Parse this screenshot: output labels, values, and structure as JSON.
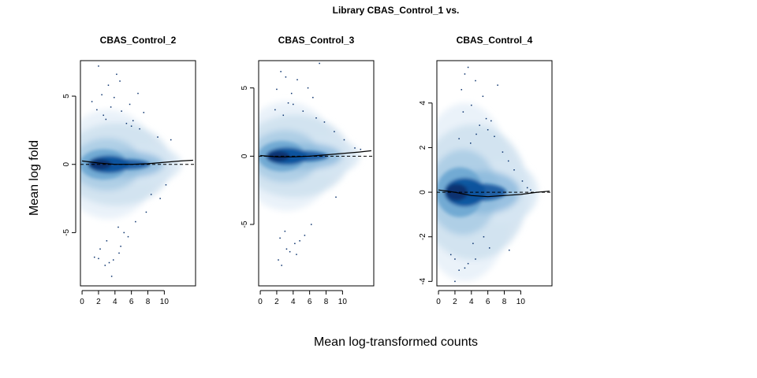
{
  "figure": {
    "title": "Library CBAS_Control_1 vs.",
    "xlabel": "Mean log-transformed counts",
    "ylabel": "Mean log fold"
  },
  "colors": {
    "density_light": "#e8f1f8",
    "density_mid": "#6ba6d1",
    "density_dark": "#08519c",
    "density_core": "#08306b",
    "points": "#08306b",
    "loess": "#000000",
    "frame": "#000000"
  },
  "chart_data": [
    {
      "type": "scatter",
      "subtype": "smoothScatter MA plot",
      "title": "CBAS_Control_2",
      "xlim": [
        -0.2,
        13.8
      ],
      "ylim": [
        -8.9,
        7.6
      ],
      "xticks": [
        0,
        2,
        4,
        6,
        8,
        10
      ],
      "yticks": [
        -5,
        0,
        5
      ],
      "reference_line": 0,
      "loess": {
        "x": [
          0,
          2,
          4,
          6,
          8,
          10,
          12,
          13.5
        ],
        "y": [
          0.25,
          0.1,
          0.0,
          0.0,
          0.05,
          0.15,
          0.25,
          0.3
        ]
      },
      "outliers": {
        "x": [
          2.0,
          4.2,
          4.6,
          3.2,
          6.8,
          2.4,
          5.8,
          3.9,
          1.2,
          7.5,
          6.2,
          5.4,
          2.9,
          4.8,
          6.0,
          7.0,
          3.5,
          2.6,
          1.8,
          4.4,
          5.1,
          3.0,
          2.2,
          1.5,
          3.8,
          4.5,
          2.8,
          3.3,
          2.0,
          4.7,
          5.6,
          6.5,
          7.8,
          9.5,
          10.2,
          10.8,
          9.2,
          8.4,
          3.6
        ],
        "y": [
          7.2,
          6.6,
          6.1,
          5.8,
          5.2,
          5.1,
          4.4,
          4.9,
          4.6,
          3.8,
          3.2,
          3.0,
          3.3,
          3.9,
          2.8,
          2.6,
          4.2,
          3.6,
          4.0,
          -4.6,
          -5.0,
          -5.6,
          -6.2,
          -6.8,
          -7.0,
          -6.5,
          -7.4,
          -7.2,
          -6.9,
          -6.0,
          -5.3,
          -4.2,
          -3.5,
          -2.5,
          -1.5,
          1.8,
          2.0,
          -2.2,
          -8.2
        ]
      }
    },
    {
      "type": "scatter",
      "subtype": "smoothScatter MA plot",
      "title": "CBAS_Control_3",
      "xlim": [
        -0.2,
        13.8
      ],
      "ylim": [
        -9.5,
        7.0
      ],
      "xticks": [
        0,
        2,
        4,
        6,
        8,
        10
      ],
      "yticks": [
        -5,
        0,
        5
      ],
      "reference_line": 0,
      "loess": {
        "x": [
          0,
          2,
          4,
          6,
          8,
          10,
          12,
          13.5
        ],
        "y": [
          0.05,
          -0.05,
          -0.05,
          0.0,
          0.1,
          0.2,
          0.3,
          0.4
        ]
      },
      "outliers": {
        "x": [
          2.5,
          7.2,
          3.1,
          4.5,
          5.8,
          2.0,
          3.8,
          6.4,
          4.0,
          5.2,
          3.4,
          6.8,
          7.8,
          2.8,
          1.8,
          9.0,
          10.2,
          11.5,
          12.2,
          3.0,
          2.4,
          4.2,
          3.6,
          4.8,
          2.2,
          5.4,
          6.2,
          3.2,
          4.4,
          2.6,
          9.2
        ],
        "y": [
          6.2,
          6.8,
          5.8,
          5.6,
          5.0,
          4.9,
          4.6,
          4.3,
          3.8,
          3.3,
          3.9,
          2.8,
          2.5,
          3.0,
          3.4,
          1.8,
          1.2,
          0.6,
          0.5,
          -5.5,
          -6.0,
          -6.4,
          -7.0,
          -6.2,
          -7.6,
          -5.8,
          -5.0,
          -6.8,
          -7.2,
          -8.0,
          -3.0
        ]
      }
    },
    {
      "type": "scatter",
      "subtype": "smoothScatter MA plot",
      "title": "CBAS_Control_4",
      "xlim": [
        -0.2,
        13.8
      ],
      "ylim": [
        -4.2,
        5.9
      ],
      "xticks": [
        0,
        2,
        4,
        6,
        8,
        10
      ],
      "yticks": [
        -4,
        -2,
        0,
        2,
        4
      ],
      "reference_line": 0,
      "loess": {
        "x": [
          0,
          2,
          4,
          6,
          8,
          10,
          12,
          13.5
        ],
        "y": [
          0.1,
          0.0,
          -0.15,
          -0.2,
          -0.15,
          -0.1,
          0.0,
          0.05
        ]
      },
      "outliers": {
        "x": [
          3.6,
          3.2,
          4.5,
          2.8,
          7.2,
          5.4,
          4.0,
          3.0,
          6.4,
          6.0,
          2.5,
          5.0,
          4.6,
          3.9,
          7.8,
          8.5,
          9.2,
          10.2,
          10.8,
          11.2,
          6.8,
          5.8,
          2.0,
          2.5,
          3.2,
          2.0,
          1.5,
          4.2,
          6.2,
          8.6,
          3.6,
          4.5,
          5.5
        ],
        "y": [
          5.6,
          5.3,
          5.0,
          4.6,
          4.8,
          4.3,
          3.9,
          3.6,
          3.2,
          2.8,
          2.4,
          3.0,
          2.6,
          2.2,
          1.8,
          1.4,
          1.0,
          0.5,
          0.2,
          0.1,
          2.5,
          3.3,
          -3.0,
          -3.5,
          -3.4,
          -4.0,
          -2.8,
          -2.3,
          -2.5,
          -2.6,
          -3.2,
          -3.0,
          -2.0
        ]
      }
    }
  ]
}
